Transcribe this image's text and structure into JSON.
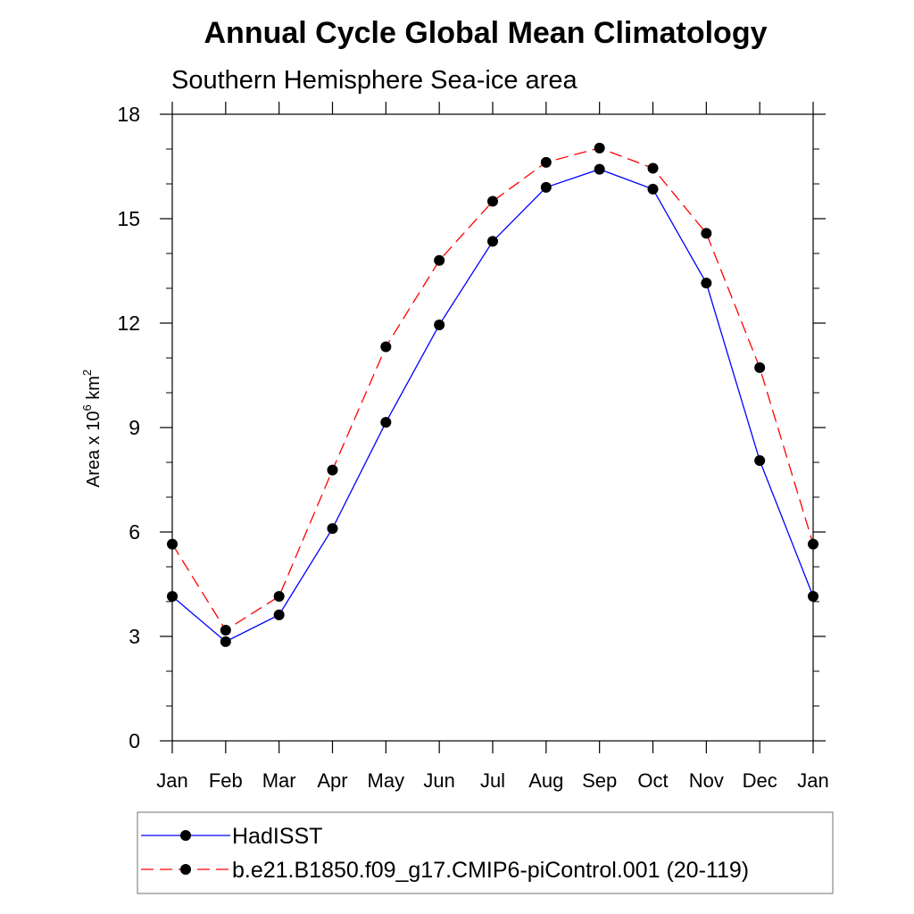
{
  "chart_data": {
    "type": "line",
    "title": "Annual Cycle Global Mean Climatology",
    "subtitle": "Southern Hemisphere Sea-ice area",
    "ylabel": {
      "prefix": "Area x 10",
      "exp1": "6",
      "mid": " km",
      "exp2": "2"
    },
    "ylim": [
      0,
      18
    ],
    "yticks": [
      0,
      3,
      6,
      9,
      12,
      15,
      18
    ],
    "categories": [
      "Jan",
      "Feb",
      "Mar",
      "Apr",
      "May",
      "Jun",
      "Jul",
      "Aug",
      "Sep",
      "Oct",
      "Nov",
      "Dec",
      "Jan"
    ],
    "series": [
      {
        "name": "HadISST",
        "color": "#0000ff",
        "dash": "solid",
        "values": [
          4.15,
          2.85,
          3.62,
          6.1,
          9.15,
          11.95,
          14.35,
          15.9,
          16.42,
          15.85,
          13.15,
          8.05,
          4.15
        ]
      },
      {
        "name": "b.e21.B1850.f09_g17.CMIP6-piControl.001 (20-119)",
        "color": "#ff0000",
        "dash": "dashed",
        "values": [
          5.65,
          3.18,
          4.15,
          7.78,
          11.32,
          13.8,
          15.5,
          16.62,
          17.03,
          16.45,
          14.58,
          10.72,
          5.65
        ]
      }
    ],
    "legend": "bottom"
  }
}
